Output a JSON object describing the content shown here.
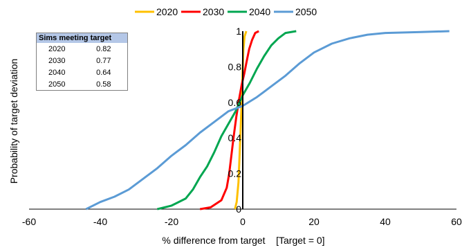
{
  "chart_data": {
    "type": "line",
    "title": "",
    "xlabel": "% difference from target    [Target = 0]",
    "ylabel": "Probability of target deviation",
    "xlim": [
      -60,
      60
    ],
    "ylim": [
      0,
      1
    ],
    "x_ticks": [
      "-60",
      "-40",
      "-20",
      "0",
      "20",
      "40",
      "60"
    ],
    "y_ticks": [
      "0",
      "0.2",
      "0.4",
      "0.6",
      "0.8",
      "1"
    ],
    "y_tick_values": [
      0,
      0.2,
      0.4,
      0.6,
      0.8,
      1
    ],
    "x_tick_values": [
      -60,
      -40,
      -20,
      0,
      20,
      40,
      60
    ],
    "legend_position": "top",
    "series": [
      {
        "name": "2020",
        "color": "#ffc000",
        "points": [
          [
            -2.2,
            0
          ],
          [
            -1.7,
            0.04
          ],
          [
            -1.2,
            0.15
          ],
          [
            -0.8,
            0.35
          ],
          [
            -0.4,
            0.55
          ],
          [
            -0.1,
            0.75
          ],
          [
            0.2,
            0.9
          ],
          [
            0.5,
            0.97
          ],
          [
            1.0,
            1
          ]
        ]
      },
      {
        "name": "2030",
        "color": "#ff0000",
        "points": [
          [
            -12,
            0
          ],
          [
            -9,
            0.01
          ],
          [
            -6,
            0.05
          ],
          [
            -4.5,
            0.12
          ],
          [
            -3.8,
            0.2
          ],
          [
            -3.2,
            0.3
          ],
          [
            -2.6,
            0.4
          ],
          [
            -1.8,
            0.52
          ],
          [
            -1.0,
            0.62
          ],
          [
            -0.3,
            0.7
          ],
          [
            0.4,
            0.76
          ],
          [
            1.0,
            0.82
          ],
          [
            1.8,
            0.9
          ],
          [
            2.6,
            0.95
          ],
          [
            3.5,
            0.99
          ],
          [
            4.5,
            1
          ]
        ]
      },
      {
        "name": "2040",
        "color": "#00a650",
        "points": [
          [
            -24,
            0
          ],
          [
            -20,
            0.02
          ],
          [
            -16,
            0.06
          ],
          [
            -14,
            0.11
          ],
          [
            -12,
            0.18
          ],
          [
            -10,
            0.24
          ],
          [
            -8,
            0.32
          ],
          [
            -6,
            0.41
          ],
          [
            -4,
            0.48
          ],
          [
            -2,
            0.55
          ],
          [
            0,
            0.64
          ],
          [
            2,
            0.71
          ],
          [
            4,
            0.79
          ],
          [
            6,
            0.86
          ],
          [
            8,
            0.92
          ],
          [
            10,
            0.96
          ],
          [
            12,
            0.99
          ],
          [
            15,
            1
          ]
        ]
      },
      {
        "name": "2050",
        "color": "#5b9bd5",
        "points": [
          [
            -44,
            0
          ],
          [
            -40,
            0.04
          ],
          [
            -36,
            0.07
          ],
          [
            -32,
            0.11
          ],
          [
            -28,
            0.17
          ],
          [
            -24,
            0.23
          ],
          [
            -20,
            0.3
          ],
          [
            -16,
            0.36
          ],
          [
            -12,
            0.43
          ],
          [
            -8,
            0.49
          ],
          [
            -4,
            0.55
          ],
          [
            0,
            0.58
          ],
          [
            4,
            0.63
          ],
          [
            8,
            0.69
          ],
          [
            12,
            0.75
          ],
          [
            16,
            0.82
          ],
          [
            20,
            0.88
          ],
          [
            25,
            0.93
          ],
          [
            30,
            0.96
          ],
          [
            35,
            0.98
          ],
          [
            40,
            0.99
          ],
          [
            50,
            0.995
          ],
          [
            58,
            1
          ]
        ]
      }
    ],
    "target_line": {
      "x": 0,
      "color": "#000000"
    }
  },
  "inset_table": {
    "header": "Sims meeting target",
    "rows": [
      {
        "year": "2020",
        "value": "0.82"
      },
      {
        "year": "2030",
        "value": "0.77"
      },
      {
        "year": "2040",
        "value": "0.64"
      },
      {
        "year": "2050",
        "value": "0.58"
      }
    ]
  }
}
